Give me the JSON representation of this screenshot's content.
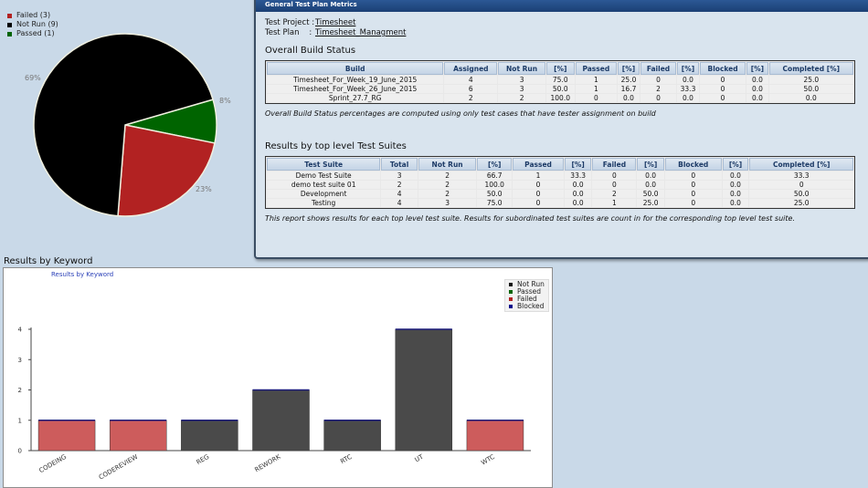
{
  "pie": {
    "legend": [
      {
        "label": "Failed (3)",
        "color": "#b22222"
      },
      {
        "label": "Not Run (9)",
        "color": "#000000"
      },
      {
        "label": "Passed (1)",
        "color": "#006400"
      }
    ],
    "pct_notrun": "69%",
    "pct_passed": "8%",
    "pct_failed": "23%"
  },
  "window": {
    "title": "General Test Plan Metrics",
    "test_project_label": "Test Project :",
    "test_project_value": "Timesheet",
    "test_plan_label": "Test Plan    :",
    "test_plan_value": "Timesheet_Managment",
    "build_section_title": "Overall Build Status",
    "build_headers": [
      "Build",
      "Assigned",
      "Not Run",
      "[%]",
      "Passed",
      "[%]",
      "Failed",
      "[%]",
      "Blocked",
      "[%]",
      "Completed [%]"
    ],
    "build_rows": [
      [
        "Timesheet_For_Week_19_June_2015",
        "4",
        "3",
        "75.0",
        "1",
        "25.0",
        "0",
        "0.0",
        "0",
        "0.0",
        "25.0"
      ],
      [
        "Timesheet_For_Week_26_June_2015",
        "6",
        "3",
        "50.0",
        "1",
        "16.7",
        "2",
        "33.3",
        "0",
        "0.0",
        "50.0"
      ],
      [
        "Sprint_27.7_RG",
        "2",
        "2",
        "100.0",
        "0",
        "0.0",
        "0",
        "0.0",
        "0",
        "0.0",
        "0.0"
      ]
    ],
    "build_note": "Overall Build Status percentages are computed using only test cases that have tester assignment on build",
    "suite_section_title": "Results by top level Test Suites",
    "suite_headers": [
      "Test Suite",
      "Total",
      "Not Run",
      "[%]",
      "Passed",
      "[%]",
      "Failed",
      "[%]",
      "Blocked",
      "[%]",
      "Completed [%]"
    ],
    "suite_rows": [
      [
        "Demo Test Suite",
        "3",
        "2",
        "66.7",
        "1",
        "33.3",
        "0",
        "0.0",
        "0",
        "0.0",
        "33.3"
      ],
      [
        "demo test suite 01",
        "2",
        "2",
        "100.0",
        "0",
        "0.0",
        "0",
        "0.0",
        "0",
        "0.0",
        "0"
      ],
      [
        "Development",
        "4",
        "2",
        "50.0",
        "0",
        "0.0",
        "2",
        "50.0",
        "0",
        "0.0",
        "50.0"
      ],
      [
        "Testing",
        "4",
        "3",
        "75.0",
        "0",
        "0.0",
        "1",
        "25.0",
        "0",
        "0.0",
        "25.0"
      ]
    ],
    "suite_note": "This report shows results for each top level test suite. Results for subordinated test suites are count in for the corresponding top level test suite."
  },
  "keyword": {
    "heading": "Results by Keyword",
    "chart_title": "Results by Keyword",
    "legend": [
      {
        "label": "Not Run",
        "color": "#111111"
      },
      {
        "label": "Passed",
        "color": "#006400"
      },
      {
        "label": "Failed",
        "color": "#b22222"
      },
      {
        "label": "Blocked",
        "color": "#00008b"
      }
    ]
  },
  "chart_data": {
    "type": "bar",
    "title": "Results by Keyword",
    "categories": [
      "CODEING",
      "CODEREVIEW",
      "REG",
      "REWORK",
      "RTC",
      "UT",
      "WTC"
    ],
    "series": [
      {
        "name": "Not Run",
        "values": [
          0,
          0,
          1,
          2,
          1,
          4,
          0
        ],
        "color": "#4a4a4a"
      },
      {
        "name": "Passed",
        "values": [
          0,
          0,
          0,
          0,
          0,
          0,
          0
        ],
        "color": "#006400"
      },
      {
        "name": "Failed",
        "values": [
          1,
          1,
          0,
          0,
          0,
          0,
          1
        ],
        "color": "#cd5c5c"
      },
      {
        "name": "Blocked",
        "values": [
          0,
          0,
          0,
          0,
          0,
          0,
          0
        ],
        "color": "#00008b"
      }
    ],
    "yticks": [
      "0",
      "1",
      "2",
      "3",
      "4"
    ],
    "ylim": [
      0,
      4
    ]
  }
}
